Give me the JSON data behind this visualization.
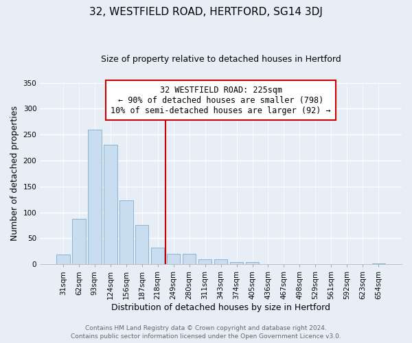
{
  "title": "32, WESTFIELD ROAD, HERTFORD, SG14 3DJ",
  "subtitle": "Size of property relative to detached houses in Hertford",
  "xlabel": "Distribution of detached houses by size in Hertford",
  "ylabel": "Number of detached properties",
  "bar_labels": [
    "31sqm",
    "62sqm",
    "93sqm",
    "124sqm",
    "156sqm",
    "187sqm",
    "218sqm",
    "249sqm",
    "280sqm",
    "311sqm",
    "343sqm",
    "374sqm",
    "405sqm",
    "436sqm",
    "467sqm",
    "498sqm",
    "529sqm",
    "561sqm",
    "592sqm",
    "623sqm",
    "654sqm"
  ],
  "bar_values": [
    19,
    87,
    260,
    231,
    123,
    76,
    32,
    20,
    20,
    10,
    10,
    4,
    4,
    1,
    0,
    0,
    0,
    0,
    0,
    0,
    2
  ],
  "bar_color": "#c8ddf0",
  "bar_edge_color": "#8ab4d4",
  "vline_x": 6.5,
  "vline_color": "#cc0000",
  "annotation_title": "32 WESTFIELD ROAD: 225sqm",
  "annotation_line1": "← 90% of detached houses are smaller (798)",
  "annotation_line2": "10% of semi-detached houses are larger (92) →",
  "annotation_box_color": "#ffffff",
  "annotation_box_edge_color": "#cc0000",
  "ylim": [
    0,
    350
  ],
  "yticks": [
    0,
    50,
    100,
    150,
    200,
    250,
    300,
    350
  ],
  "footer1": "Contains HM Land Registry data © Crown copyright and database right 2024.",
  "footer2": "Contains public sector information licensed under the Open Government Licence v3.0.",
  "bg_color": "#e8eef6",
  "grid_color": "#ffffff",
  "title_fontsize": 11,
  "subtitle_fontsize": 9,
  "tick_fontsize": 7.5,
  "ylabel_fontsize": 9,
  "xlabel_fontsize": 9,
  "footer_fontsize": 6.5,
  "footer_color": "#666666"
}
